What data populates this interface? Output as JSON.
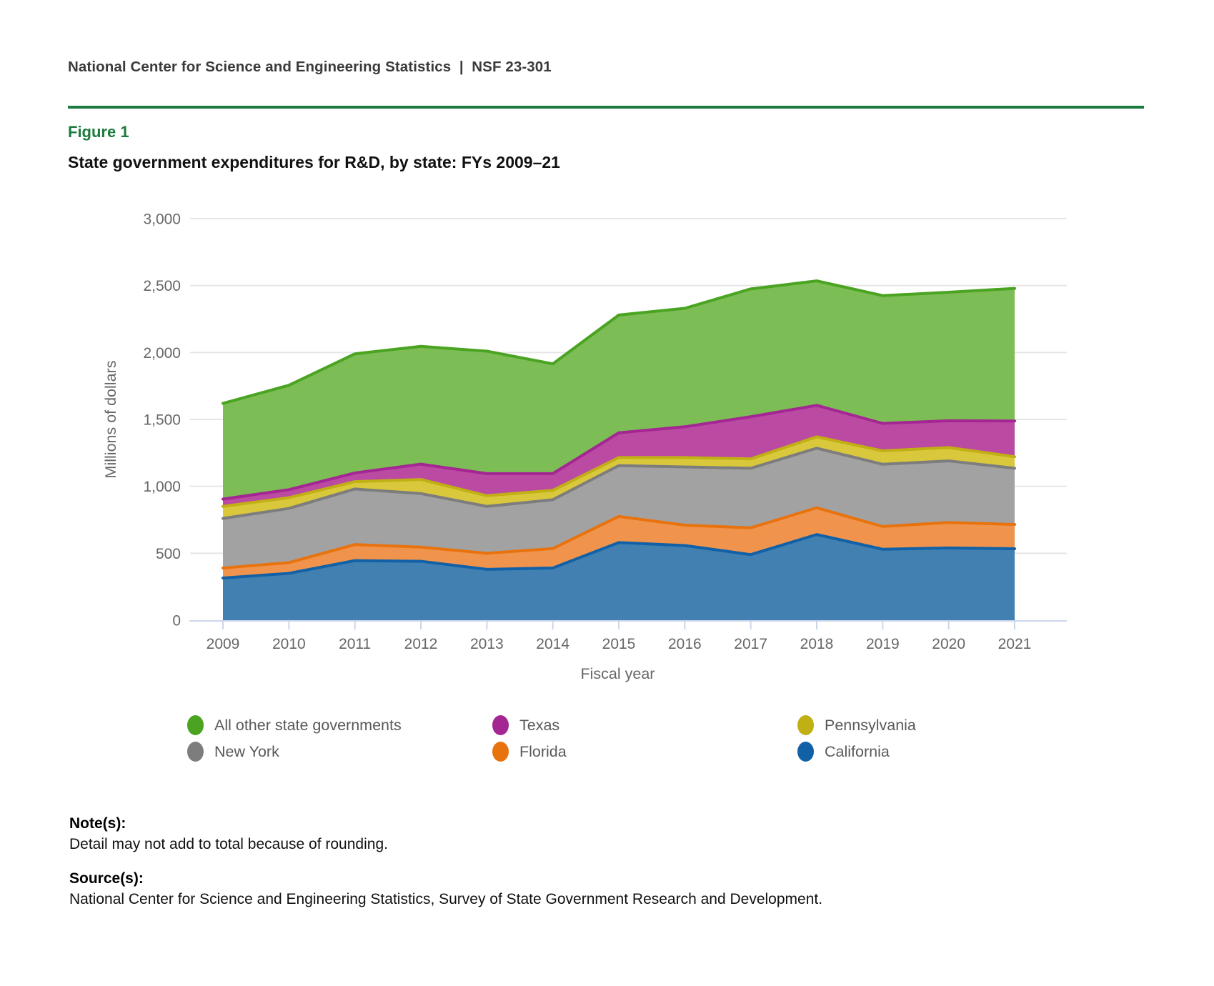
{
  "page": {
    "header": "National Center for Science and Engineering Statistics  |  NSF 23-301",
    "figure_label": "Figure 1",
    "title": "State government expenditures for R&D, by state: FYs 2009–21"
  },
  "chart_data": {
    "type": "area",
    "stacked": true,
    "xlabel": "Fiscal year",
    "ylabel": "Millions of dollars",
    "ylim": [
      0,
      3000
    ],
    "ytick_interval": 500,
    "ytick_labels": [
      "0",
      "500",
      "1,000",
      "1,500",
      "2,000",
      "2,500",
      "3,000"
    ],
    "grid": true,
    "legend_position": "bottom",
    "categories": [
      "2009",
      "2010",
      "2011",
      "2012",
      "2013",
      "2014",
      "2015",
      "2016",
      "2017",
      "2018",
      "2019",
      "2020",
      "2021"
    ],
    "series": [
      {
        "name": "California",
        "fill": "#4180b1",
        "line": "#1261a7",
        "values": [
          315,
          350,
          445,
          440,
          380,
          390,
          580,
          558,
          490,
          640,
          530,
          540,
          534
        ]
      },
      {
        "name": "Florida",
        "fill": "#f0944d",
        "line": "#e8730e",
        "values": [
          75,
          80,
          120,
          106,
          120,
          145,
          195,
          152,
          200,
          200,
          170,
          190,
          181
        ]
      },
      {
        "name": "New York",
        "fill": "#a2a2a2",
        "line": "#7d7d7d",
        "values": [
          370,
          405,
          415,
          400,
          350,
          365,
          380,
          435,
          445,
          445,
          465,
          460,
          420
        ]
      },
      {
        "name": "Pennsylvania",
        "fill": "#d9c83c",
        "line": "#c1b014",
        "values": [
          90,
          80,
          55,
          105,
          80,
          70,
          60,
          70,
          70,
          85,
          100,
          100,
          86
        ]
      },
      {
        "name": "Texas",
        "fill": "#bb4aa2",
        "line": "#a42693",
        "values": [
          55,
          60,
          65,
          115,
          165,
          125,
          185,
          230,
          315,
          235,
          205,
          200,
          267
        ]
      },
      {
        "name": "All other state governments",
        "fill": "#7cbd55",
        "line": "#4aa422",
        "values": [
          715,
          780,
          890,
          880,
          915,
          820,
          880,
          885,
          955,
          930,
          955,
          960,
          991
        ]
      }
    ],
    "legend_items": [
      {
        "label": "All other state governments",
        "color": "#4aa422"
      },
      {
        "label": "Texas",
        "color": "#a42693"
      },
      {
        "label": "Pennsylvania",
        "color": "#c1b014"
      },
      {
        "label": "New York",
        "color": "#7d7d7d"
      },
      {
        "label": "Florida",
        "color": "#e8730e"
      },
      {
        "label": "California",
        "color": "#1261a7"
      }
    ]
  },
  "notes": {
    "heading": "Note(s):",
    "body": "Detail may not add to total because of rounding."
  },
  "sources": {
    "heading": "Source(s):",
    "body": "National Center for Science and Engineering Statistics, Survey of State Government Research and Development."
  },
  "colors": {
    "accent_green": "#1b7a3e",
    "axis_line": "#ccd6eb",
    "gridline": "#e6e6e6",
    "axis_text": "#666666",
    "legend_text": "#595959"
  }
}
